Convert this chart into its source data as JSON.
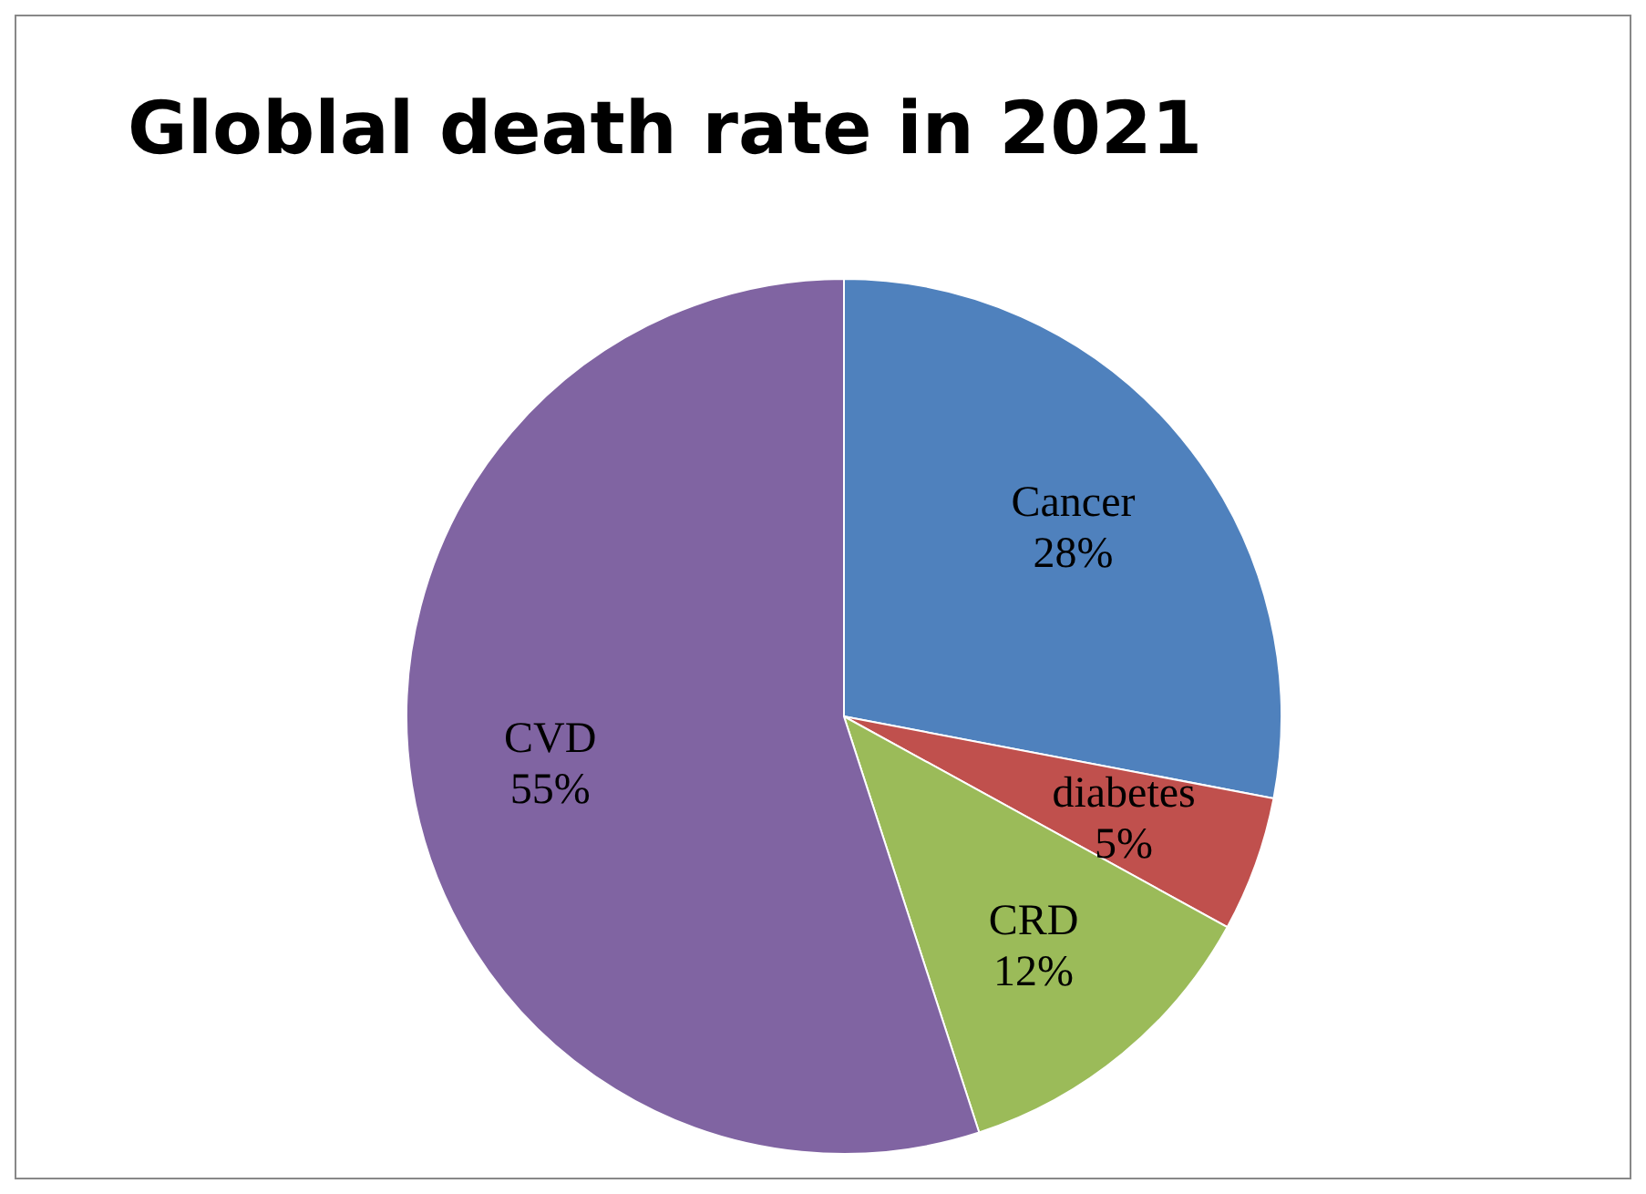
{
  "chart_data": {
    "type": "pie",
    "title": "Globlal death rate in 2021",
    "categories": [
      "Cancer",
      "diabetes",
      "CRD",
      "CVD"
    ],
    "values": [
      28,
      5,
      12,
      55
    ],
    "colors": [
      "#4f81bd",
      "#c0504d",
      "#9bbb59",
      "#8064a2"
    ],
    "value_labels": [
      "28%",
      "5%",
      "12%",
      "55%"
    ],
    "legend": false
  }
}
